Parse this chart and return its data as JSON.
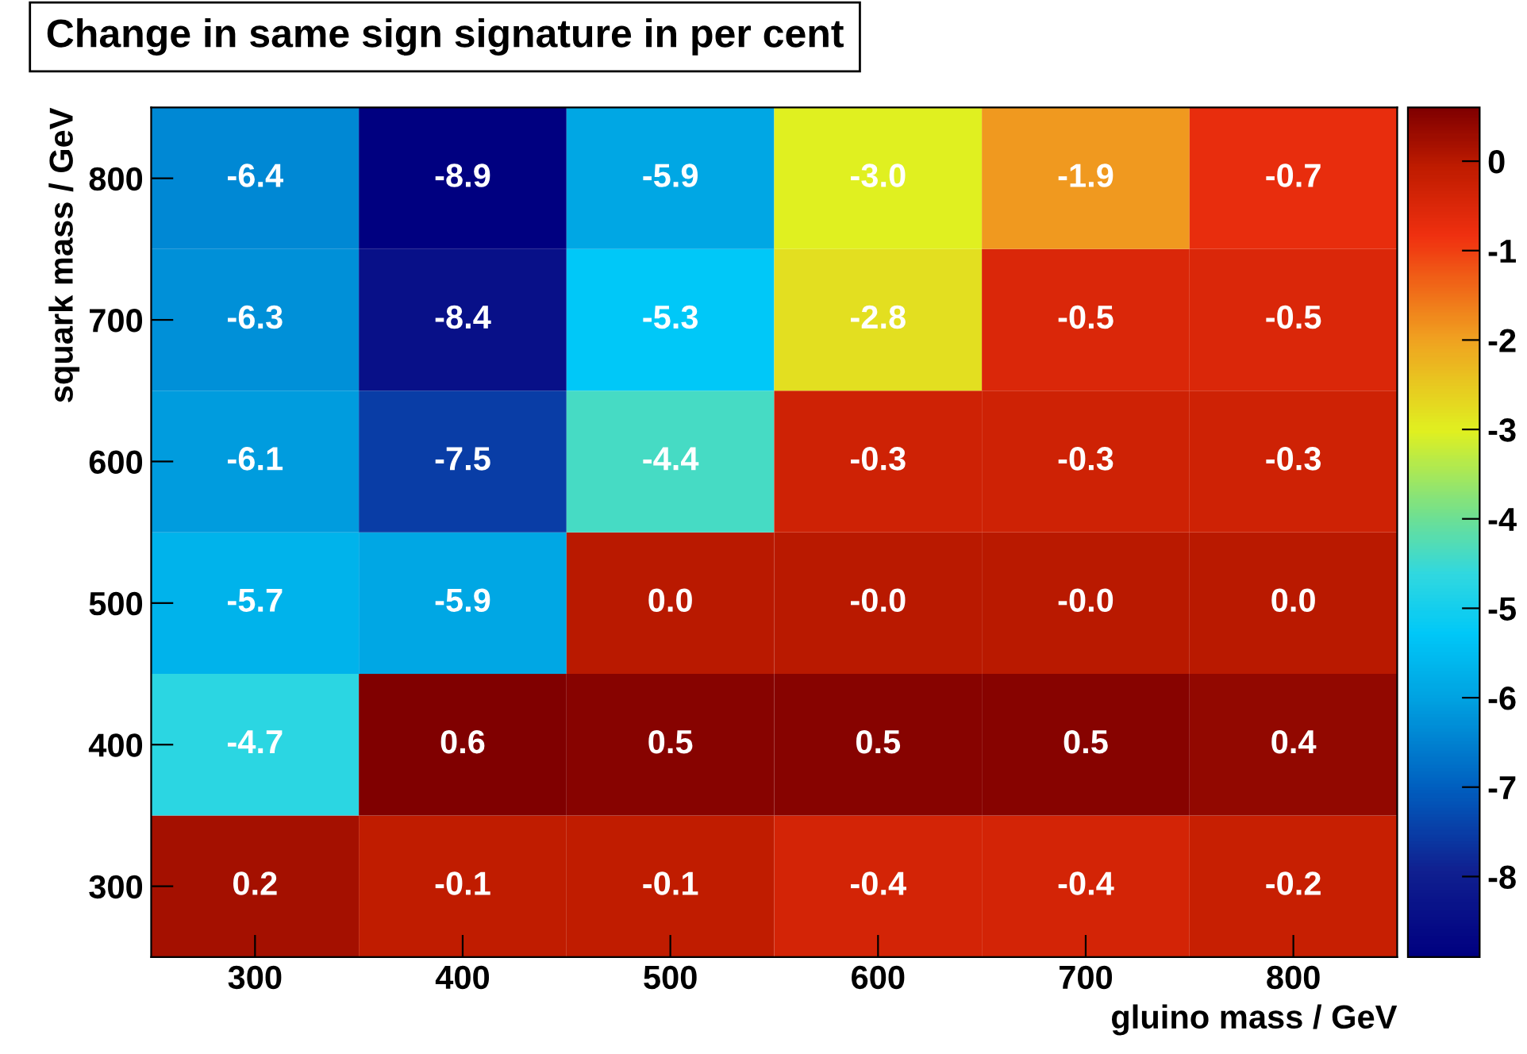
{
  "chart_data": {
    "type": "heatmap",
    "title": "Change in same sign signature in per cent",
    "xlabel": "gluino mass / GeV",
    "ylabel": "squark mass / GeV",
    "categories": [
      "300",
      "400",
      "500",
      "600",
      "700",
      "800"
    ],
    "y_categories": [
      "800",
      "700",
      "600",
      "500",
      "400",
      "300"
    ],
    "cells": [
      [
        -6.4,
        -8.9,
        -5.9,
        -3.0,
        -1.9,
        -0.7
      ],
      [
        -6.3,
        -8.4,
        -5.3,
        -2.8,
        -0.5,
        -0.5
      ],
      [
        -6.1,
        -7.5,
        -4.4,
        -0.3,
        -0.3,
        -0.3
      ],
      [
        -5.7,
        -5.9,
        0.0,
        -0.0,
        -0.0,
        0.0
      ],
      [
        -4.7,
        0.6,
        0.5,
        0.5,
        0.5,
        0.4
      ],
      [
        0.2,
        -0.1,
        -0.1,
        -0.4,
        -0.4,
        -0.2
      ]
    ],
    "cell_labels": [
      [
        "-6.4",
        "-8.9",
        "-5.9",
        "-3.0",
        "-1.9",
        "-0.7"
      ],
      [
        "-6.3",
        "-8.4",
        "-5.3",
        "-2.8",
        "-0.5",
        "-0.5"
      ],
      [
        "-6.1",
        "-7.5",
        "-4.4",
        "-0.3",
        "-0.3",
        "-0.3"
      ],
      [
        "-5.7",
        "-5.9",
        "0.0",
        "-0.0",
        "-0.0",
        "0.0"
      ],
      [
        "-4.7",
        "0.6",
        "0.5",
        "0.5",
        "0.5",
        "0.4"
      ],
      [
        "0.2",
        "-0.1",
        "-0.1",
        "-0.4",
        "-0.4",
        "-0.2"
      ]
    ],
    "clim": [
      -8.9,
      0.6
    ],
    "cticks": [
      0,
      -1,
      -2,
      -3,
      -4,
      -5,
      -6,
      -7,
      -8
    ],
    "grid": false
  }
}
